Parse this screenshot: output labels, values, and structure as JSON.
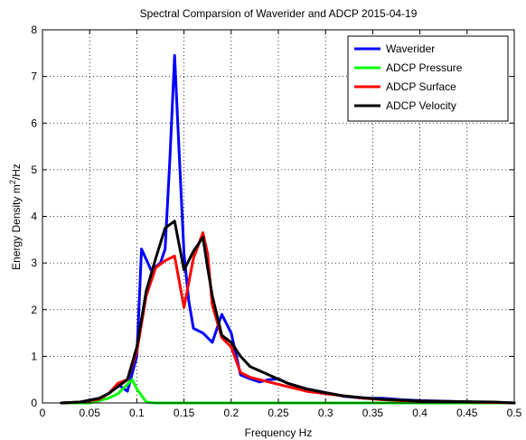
{
  "chart_data": {
    "type": "line",
    "title": "Spectral Comparsion of Waverider and ADCP 2015-04-19",
    "xlabel": "Frequency Hz",
    "ylabel_main": "Energy Density m",
    "ylabel_sup": "2",
    "ylabel_tail": "/Hz",
    "xlim": [
      0,
      0.5
    ],
    "ylim": [
      0,
      8
    ],
    "xticks": [
      "0",
      "0.05",
      "0.1",
      "0.15",
      "0.2",
      "0.25",
      "0.3",
      "0.35",
      "0.4",
      "0.45",
      "0.5"
    ],
    "yticks": [
      "0",
      "1",
      "2",
      "3",
      "4",
      "5",
      "6",
      "7",
      "8"
    ],
    "grid": true,
    "legend_position": "top-right",
    "series": [
      {
        "name": "Waverider",
        "color": "#0000ff",
        "x": [
          0.02,
          0.04,
          0.06,
          0.07,
          0.08,
          0.09,
          0.1,
          0.105,
          0.115,
          0.125,
          0.13,
          0.135,
          0.14,
          0.145,
          0.15,
          0.155,
          0.16,
          0.17,
          0.18,
          0.19,
          0.2,
          0.21,
          0.22,
          0.23,
          0.24,
          0.25,
          0.26,
          0.28,
          0.3,
          0.32,
          0.34,
          0.36,
          0.38,
          0.4,
          0.42,
          0.44,
          0.46,
          0.48,
          0.5
        ],
        "y": [
          0.0,
          0.02,
          0.1,
          0.2,
          0.4,
          0.25,
          1.0,
          3.3,
          2.85,
          3.0,
          3.3,
          5.2,
          7.45,
          5.3,
          3.2,
          2.2,
          1.6,
          1.5,
          1.3,
          1.9,
          1.5,
          0.6,
          0.52,
          0.45,
          0.5,
          0.52,
          0.42,
          0.3,
          0.22,
          0.14,
          0.1,
          0.1,
          0.07,
          0.05,
          0.04,
          0.03,
          0.02,
          0.01,
          0.0
        ]
      },
      {
        "name": "ADCP Pressure",
        "color": "#00ff00",
        "x": [
          0.02,
          0.05,
          0.07,
          0.08,
          0.09,
          0.095,
          0.1,
          0.11,
          0.12,
          0.2,
          0.3,
          0.4,
          0.5
        ],
        "y": [
          0.0,
          0.0,
          0.1,
          0.2,
          0.4,
          0.5,
          0.3,
          0.02,
          0.0,
          0.0,
          0.0,
          0.0,
          0.0
        ]
      },
      {
        "name": "ADCP Surface",
        "color": "#ff0000",
        "x": [
          0.02,
          0.04,
          0.06,
          0.07,
          0.08,
          0.09,
          0.1,
          0.11,
          0.12,
          0.13,
          0.14,
          0.15,
          0.16,
          0.17,
          0.175,
          0.18,
          0.19,
          0.2,
          0.21,
          0.22,
          0.24,
          0.26,
          0.28,
          0.3,
          0.32,
          0.34,
          0.36,
          0.38,
          0.4,
          0.44,
          0.48,
          0.5
        ],
        "y": [
          0.0,
          0.02,
          0.08,
          0.2,
          0.42,
          0.5,
          1.1,
          2.3,
          2.9,
          3.05,
          3.15,
          2.05,
          3.1,
          3.65,
          3.2,
          2.1,
          1.4,
          1.2,
          0.65,
          0.55,
          0.45,
          0.35,
          0.25,
          0.2,
          0.15,
          0.1,
          0.07,
          0.05,
          0.04,
          0.02,
          0.01,
          0.0
        ]
      },
      {
        "name": "ADCP Velocity",
        "color": "#000000",
        "x": [
          0.02,
          0.04,
          0.06,
          0.07,
          0.08,
          0.09,
          0.1,
          0.11,
          0.12,
          0.13,
          0.14,
          0.15,
          0.16,
          0.17,
          0.175,
          0.18,
          0.19,
          0.2,
          0.21,
          0.22,
          0.24,
          0.26,
          0.28,
          0.3,
          0.32,
          0.34,
          0.36,
          0.38,
          0.4,
          0.44,
          0.48,
          0.5
        ],
        "y": [
          0.0,
          0.02,
          0.1,
          0.2,
          0.35,
          0.5,
          1.2,
          2.4,
          3.1,
          3.75,
          3.9,
          2.85,
          3.25,
          3.55,
          2.9,
          2.3,
          1.45,
          1.3,
          1.0,
          0.78,
          0.6,
          0.42,
          0.3,
          0.22,
          0.15,
          0.11,
          0.08,
          0.06,
          0.04,
          0.03,
          0.02,
          0.0
        ]
      }
    ]
  }
}
